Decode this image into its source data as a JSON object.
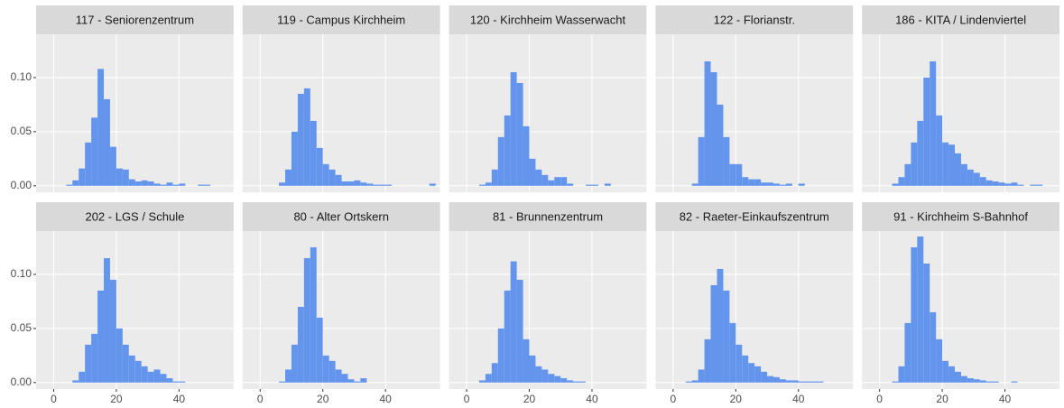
{
  "chart_data": {
    "type": "histogram",
    "color": "#6495ed",
    "grid": true,
    "bins": [
      2,
      4,
      6,
      8,
      10,
      12,
      14,
      16,
      18,
      20,
      22,
      24,
      26,
      28,
      30,
      32,
      34,
      36,
      38,
      40,
      42,
      44,
      46,
      48,
      50,
      52,
      54,
      56
    ],
    "xlim": [
      -5.6,
      57.4
    ],
    "ylim": [
      -0.006,
      0.14
    ],
    "xticks": [
      0,
      20,
      40
    ],
    "yticks": [
      {
        "value": 0,
        "label": "0.00"
      },
      {
        "value": 0.05,
        "label": "0.05"
      },
      {
        "value": 0.1,
        "label": "0.10"
      }
    ],
    "facets": [
      {
        "title": "117 - Seniorenzentrum",
        "values": [
          0,
          0.001,
          0.005,
          0.016,
          0.04,
          0.063,
          0.108,
          0.08,
          0.036,
          0.016,
          0.015,
          0.006,
          0.004,
          0.005,
          0.004,
          0.002,
          0.001,
          0.003,
          0.001,
          0.002,
          0,
          0,
          0.001,
          0.001,
          0,
          0,
          0
        ]
      },
      {
        "title": "119 - Campus Kirchheim",
        "values": [
          0,
          0,
          0.003,
          0.015,
          0.05,
          0.085,
          0.09,
          0.06,
          0.035,
          0.02,
          0.015,
          0.01,
          0.004,
          0.004,
          0.005,
          0.003,
          0.002,
          0.001,
          0.001,
          0.001,
          0,
          0,
          0,
          0,
          0,
          0,
          0.002
        ]
      },
      {
        "title": "120 - Kirchheim Wasserwacht",
        "values": [
          0,
          0.001,
          0.003,
          0.015,
          0.045,
          0.065,
          0.105,
          0.095,
          0.055,
          0.025,
          0.015,
          0.01,
          0.005,
          0.008,
          0.008,
          0.002,
          0,
          0,
          0.001,
          0.001,
          0,
          0.002,
          0,
          0,
          0,
          0,
          0
        ]
      },
      {
        "title": "122 - Florianstr.",
        "values": [
          0,
          0,
          0.002,
          0.045,
          0.115,
          0.105,
          0.075,
          0.045,
          0.02,
          0.02,
          0.008,
          0.006,
          0.006,
          0.003,
          0.003,
          0.002,
          0.001,
          0.002,
          0,
          0.002,
          0,
          0,
          0,
          0,
          0,
          0,
          0
        ]
      },
      {
        "title": "186 - KITA / Lindenviertel",
        "values": [
          0,
          0.002,
          0.008,
          0.02,
          0.04,
          0.06,
          0.1,
          0.115,
          0.065,
          0.04,
          0.038,
          0.03,
          0.02,
          0.015,
          0.012,
          0.008,
          0.005,
          0.004,
          0.003,
          0.002,
          0.003,
          0.001,
          0,
          0.001,
          0.001,
          0,
          0
        ]
      },
      {
        "title": "202 - LGS / Schule",
        "values": [
          0,
          0,
          0.002,
          0.01,
          0.035,
          0.045,
          0.085,
          0.115,
          0.095,
          0.05,
          0.035,
          0.025,
          0.02,
          0.015,
          0.01,
          0.012,
          0.008,
          0.004,
          0.001,
          0.001,
          0,
          0,
          0,
          0,
          0,
          0,
          0
        ]
      },
      {
        "title": "80 - Alter Ortskern",
        "values": [
          0,
          0,
          0.001,
          0.012,
          0.035,
          0.07,
          0.115,
          0.125,
          0.06,
          0.025,
          0.02,
          0.012,
          0.008,
          0.003,
          0.001,
          0.004,
          0,
          0,
          0,
          0,
          0,
          0,
          0,
          0,
          0,
          0,
          0
        ]
      },
      {
        "title": "81 - Brunnenzentrum",
        "values": [
          0,
          0.002,
          0.008,
          0.018,
          0.05,
          0.085,
          0.112,
          0.095,
          0.04,
          0.025,
          0.015,
          0.012,
          0.008,
          0.006,
          0.004,
          0.002,
          0.001,
          0.001,
          0,
          0,
          0,
          0,
          0,
          0,
          0,
          0,
          0
        ]
      },
      {
        "title": "82 - Raeter-Einkaufszentrum",
        "values": [
          0,
          0.001,
          0.002,
          0.012,
          0.04,
          0.09,
          0.105,
          0.085,
          0.055,
          0.035,
          0.025,
          0.018,
          0.015,
          0.01,
          0.006,
          0.005,
          0.003,
          0.002,
          0.002,
          0.001,
          0.001,
          0.001,
          0.001,
          0,
          0,
          0,
          0
        ]
      },
      {
        "title": "91 - Kirchheim S-Bahnhof",
        "values": [
          0,
          0.001,
          0.015,
          0.055,
          0.125,
          0.135,
          0.11,
          0.065,
          0.04,
          0.02,
          0.015,
          0.01,
          0.006,
          0.004,
          0.003,
          0.002,
          0.001,
          0.001,
          0,
          0,
          0.001,
          0,
          0,
          0,
          0,
          0,
          0
        ]
      }
    ]
  }
}
